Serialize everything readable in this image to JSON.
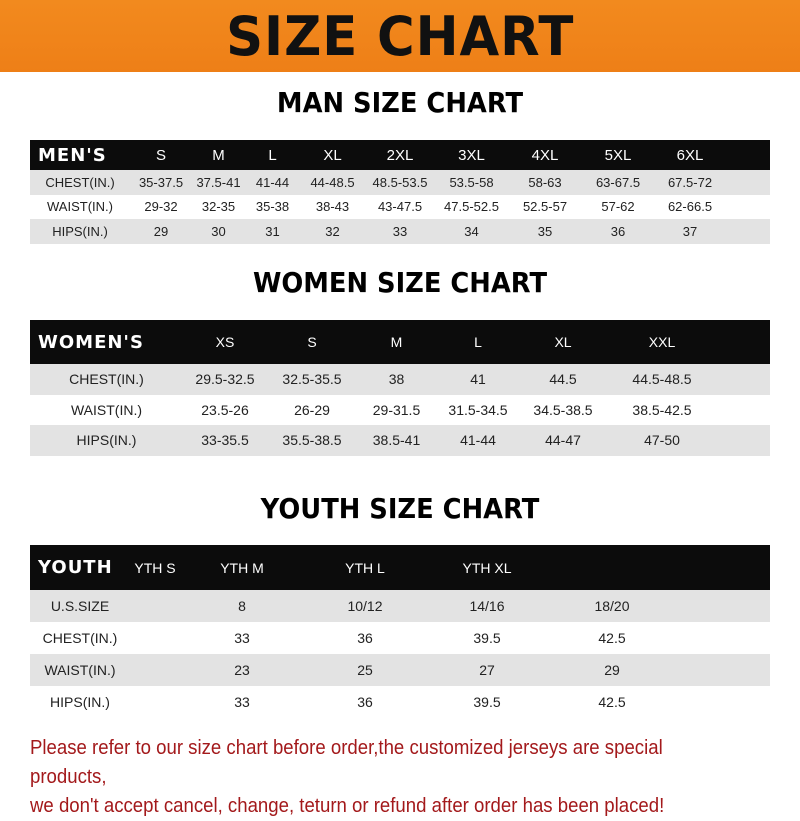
{
  "title": "SIZE CHART",
  "men": {
    "heading": "MAN SIZE CHART",
    "header": [
      "MEN'S",
      "S",
      "M",
      "L",
      "XL",
      "2XL",
      "3XL",
      "4XL",
      "5XL",
      "6XL"
    ],
    "rows": [
      [
        "CHEST(IN.)",
        "35-37.5",
        "37.5-41",
        "41-44",
        "44-48.5",
        "48.5-53.5",
        "53.5-58",
        "58-63",
        "63-67.5",
        "67.5-72"
      ],
      [
        "WAIST(IN.)",
        "29-32",
        "32-35",
        "35-38",
        "38-43",
        "43-47.5",
        "47.5-52.5",
        "52.5-57",
        "57-62",
        "62-66.5"
      ],
      [
        "HIPS(IN.)",
        "29",
        "30",
        "31",
        "32",
        "33",
        "34",
        "35",
        "36",
        "37"
      ]
    ]
  },
  "women": {
    "heading": "WOMEN SIZE CHART",
    "header": [
      "WOMEN'S",
      "XS",
      "S",
      "M",
      "L",
      "XL",
      "XXL"
    ],
    "rows": [
      [
        "CHEST(IN.)",
        "29.5-32.5",
        "32.5-35.5",
        "38",
        "41",
        "44.5",
        "44.5-48.5"
      ],
      [
        "WAIST(IN.)",
        "23.5-26",
        "26-29",
        "29-31.5",
        "31.5-34.5",
        "34.5-38.5",
        "38.5-42.5"
      ],
      [
        "HIPS(IN.)",
        "33-35.5",
        "35.5-38.5",
        "38.5-41",
        "41-44",
        "44-47",
        "47-50"
      ]
    ]
  },
  "youth": {
    "heading": "YOUTH SIZE CHART",
    "header": [
      "YOUTH",
      "YTH S",
      "YTH M",
      "YTH L",
      "YTH XL"
    ],
    "rows": [
      [
        "U.S.SIZE",
        "8",
        "10/12",
        "14/16",
        "18/20"
      ],
      [
        "CHEST(IN.)",
        "33",
        "36",
        "39.5",
        "42.5"
      ],
      [
        "WAIST(IN.)",
        "23",
        "25",
        "27",
        "29"
      ],
      [
        "HIPS(IN.)",
        "33",
        "36",
        "39.5",
        "42.5"
      ]
    ]
  },
  "note": {
    "line1": "Please refer to our size chart before order,the customized jerseys are special products,",
    "line2": "we don't accept cancel, change, teturn or refund after order has been placed!"
  },
  "colors": {
    "banner": "#f08a1e",
    "header_row": "#0c0c0c",
    "stripe": "#e3e3e3",
    "note": "#a3191b"
  }
}
